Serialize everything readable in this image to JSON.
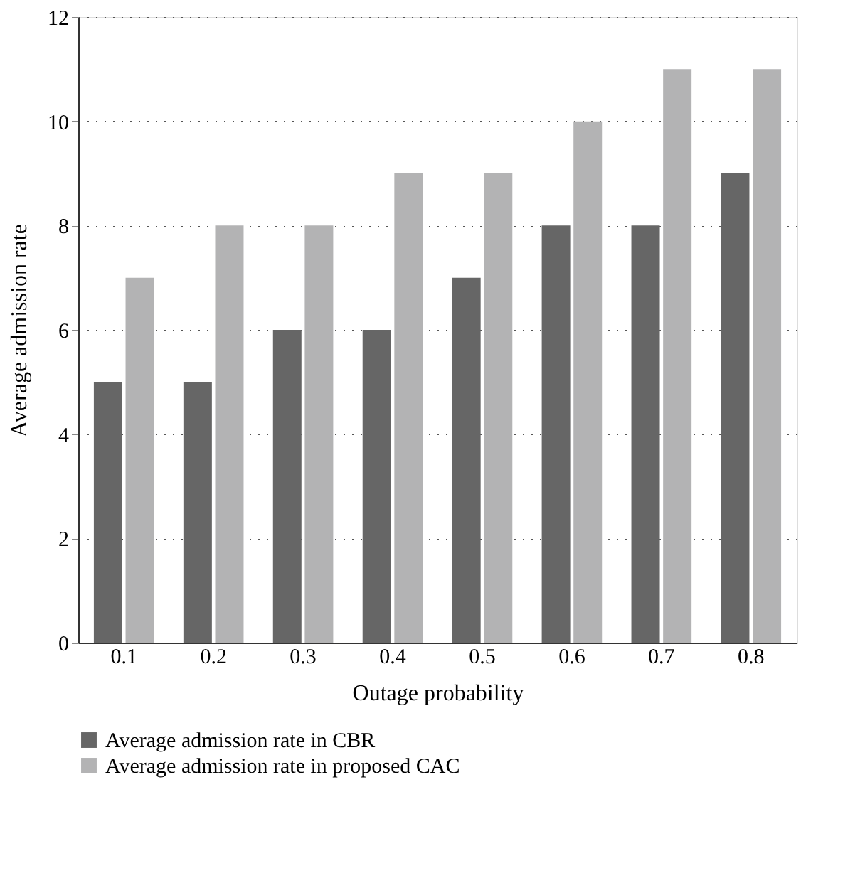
{
  "chart_data": {
    "type": "bar",
    "xlabel": "Outage probability",
    "ylabel": "Average admission rate",
    "categories": [
      "0.1",
      "0.2",
      "0.3",
      "0.4",
      "0.5",
      "0.6",
      "0.7",
      "0.8"
    ],
    "series": [
      {
        "name": "Average admission rate in CBR",
        "color": "#666666",
        "values": [
          5,
          5,
          6,
          6,
          7,
          8,
          8,
          9
        ]
      },
      {
        "name": "Average admission rate in proposed CAC",
        "color": "#b3b3b4",
        "values": [
          7,
          8,
          8,
          9,
          9,
          10,
          11,
          11
        ]
      }
    ],
    "ylim": [
      0,
      12
    ],
    "yticks": [
      0,
      2,
      4,
      6,
      8,
      10,
      12
    ],
    "grid": "y",
    "legend": "bottom"
  }
}
